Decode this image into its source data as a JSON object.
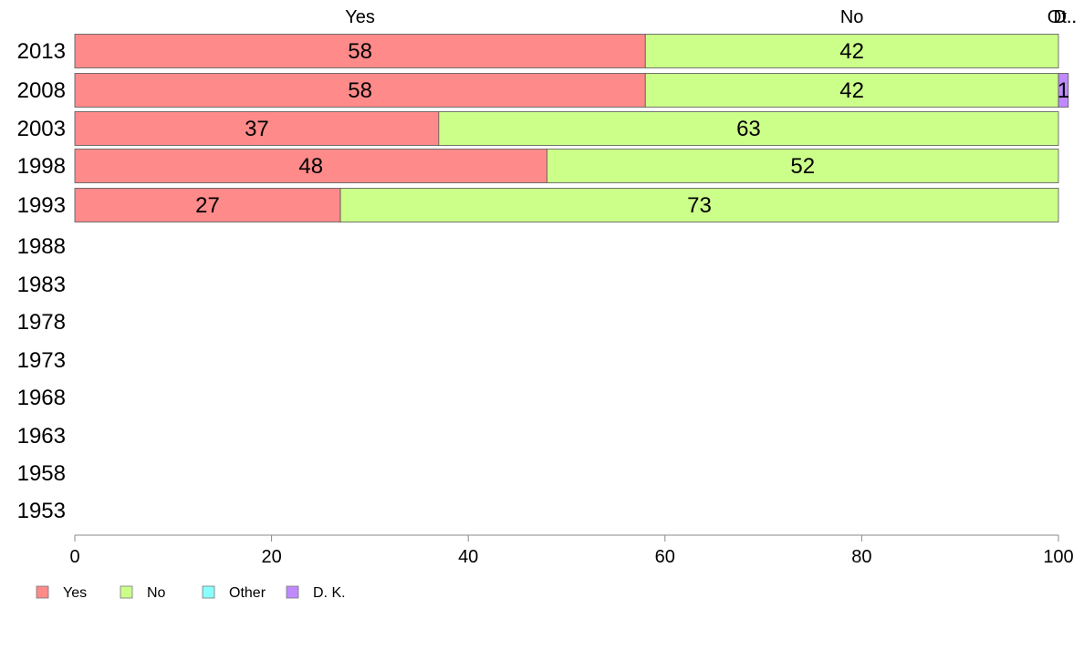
{
  "chart_data": {
    "type": "bar",
    "orientation": "horizontal",
    "stacked": true,
    "categories": [
      "2013",
      "2008",
      "2003",
      "1998",
      "1993",
      "1988",
      "1983",
      "1978",
      "1973",
      "1968",
      "1963",
      "1958",
      "1953"
    ],
    "series": [
      {
        "name": "Yes",
        "color": "#ff8a8a",
        "values": [
          58,
          58,
          37,
          48,
          27,
          null,
          null,
          null,
          null,
          null,
          null,
          null,
          null
        ]
      },
      {
        "name": "No",
        "color": "#ccff8a",
        "values": [
          42,
          42,
          63,
          52,
          73,
          null,
          null,
          null,
          null,
          null,
          null,
          null,
          null
        ]
      },
      {
        "name": "Other",
        "color": "#8affff",
        "values": [
          0,
          0,
          0,
          0,
          0,
          null,
          null,
          null,
          null,
          null,
          null,
          null,
          null
        ]
      },
      {
        "name": "D. K.",
        "color": "#c08aff",
        "values": [
          0,
          1,
          0,
          0,
          0,
          null,
          null,
          null,
          null,
          null,
          null,
          null,
          null
        ]
      }
    ],
    "top_labels": [
      "Yes",
      "No",
      "Ot..",
      "D.."
    ],
    "xlim": [
      0,
      100
    ],
    "xticks": [
      0,
      20,
      40,
      60,
      80,
      100
    ],
    "legend_position": "bottom-left",
    "grid": false
  }
}
